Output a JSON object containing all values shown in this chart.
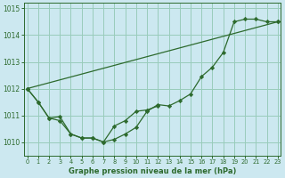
{
  "background_color": "#cce8f0",
  "grid_color": "#99ccbb",
  "line_color": "#2d6a2d",
  "xlabel": "Graphe pression niveau de la mer (hPa)",
  "ylim": [
    1009.5,
    1015.2
  ],
  "xlim": [
    -0.3,
    23.3
  ],
  "yticks": [
    1010,
    1011,
    1012,
    1013,
    1014,
    1015
  ],
  "xticks": [
    0,
    1,
    2,
    3,
    4,
    5,
    6,
    7,
    8,
    9,
    10,
    11,
    12,
    13,
    14,
    15,
    16,
    17,
    18,
    19,
    20,
    21,
    22,
    23
  ],
  "series1": [
    1012.0,
    1011.5,
    1010.9,
    1010.8,
    1010.3,
    1010.15,
    1010.15,
    1010.0,
    1010.1,
    1010.3,
    1010.55,
    1011.15,
    1011.4,
    1011.35,
    1011.55,
    1011.8,
    1012.45,
    1012.8,
    1013.35,
    1014.5,
    1014.6,
    1014.6,
    1014.5,
    1014.5
  ],
  "series2_x": [
    0,
    1,
    2,
    3,
    4,
    5,
    6,
    7,
    8,
    9,
    10,
    11,
    12
  ],
  "series2_y": [
    1012.0,
    1011.5,
    1010.9,
    1010.95,
    1010.3,
    1010.15,
    1010.15,
    1010.0,
    1010.6,
    1010.8,
    1011.15,
    1011.2,
    1011.35
  ],
  "series3_x": [
    0,
    23
  ],
  "series3_y": [
    1012.0,
    1014.5
  ]
}
